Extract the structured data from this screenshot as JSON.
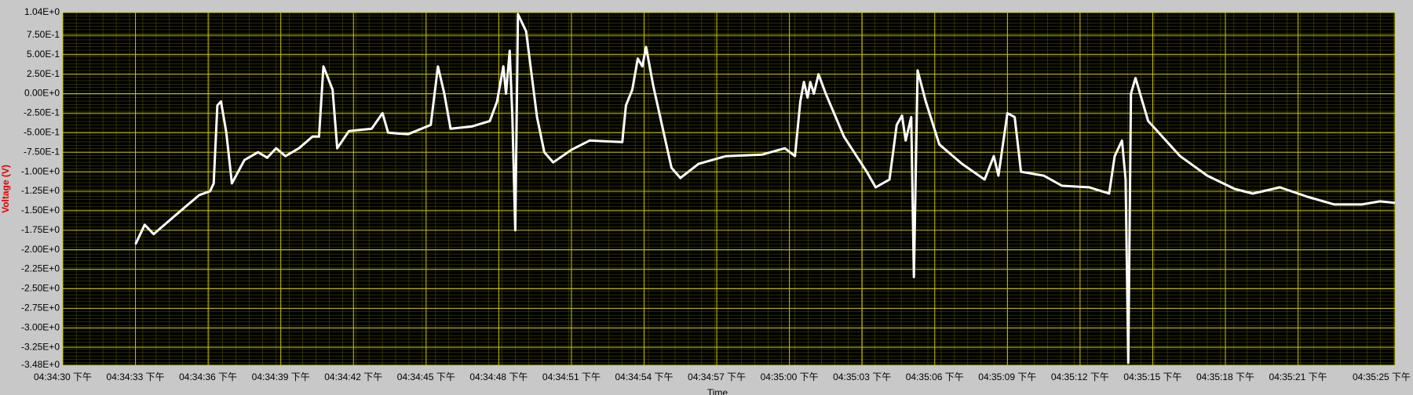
{
  "chart_data": {
    "type": "line",
    "xlabel": "Time",
    "ylabel": "Voltage (V)",
    "x": [
      3.0,
      3.38,
      3.75,
      4.31,
      5.06,
      5.63,
      6.08,
      6.23,
      6.38,
      6.53,
      6.75,
      6.98,
      7.5,
      8.06,
      8.44,
      8.81,
      9.19,
      9.75,
      10.31,
      10.58,
      10.76,
      10.95,
      11.14,
      11.33,
      11.81,
      12.75,
      13.2,
      13.43,
      14.25,
      15.19,
      15.49,
      15.75,
      16.01,
      16.88,
      17.63,
      17.93,
      18.19,
      18.3,
      18.45,
      18.56,
      18.68,
      18.79,
      19.13,
      19.58,
      19.88,
      20.25,
      21.0,
      21.75,
      23.1,
      23.25,
      23.51,
      23.74,
      23.93,
      24.08,
      24.38,
      25.13,
      25.5,
      26.25,
      27.38,
      28.88,
      29.81,
      30.23,
      30.45,
      30.6,
      30.75,
      30.86,
      31.01,
      31.2,
      31.5,
      32.25,
      33.19,
      33.56,
      34.13,
      34.43,
      34.65,
      34.8,
      35.03,
      35.14,
      35.29,
      35.63,
      36.19,
      37.13,
      38.06,
      38.44,
      38.63,
      39.0,
      39.3,
      39.56,
      40.5,
      41.25,
      42.38,
      43.2,
      43.43,
      43.73,
      43.88,
      43.99,
      44.1,
      44.29,
      44.81,
      46.13,
      47.25,
      48.38,
      49.13,
      50.25,
      51.38,
      52.5,
      53.63,
      54.38,
      55.0
    ],
    "series": [
      {
        "color": "#ffffff",
        "values": [
          -1.93,
          -1.68,
          -1.8,
          -1.65,
          -1.45,
          -1.3,
          -1.25,
          -1.15,
          -0.15,
          -0.1,
          -0.5,
          -1.15,
          -0.85,
          -0.75,
          -0.82,
          -0.7,
          -0.8,
          -0.7,
          -0.55,
          -0.55,
          0.35,
          0.2,
          0.05,
          -0.7,
          -0.48,
          -0.45,
          -0.25,
          -0.5,
          -0.52,
          -0.4,
          0.35,
          0.0,
          -0.45,
          -0.42,
          -0.35,
          -0.1,
          0.35,
          0.0,
          0.55,
          -0.3,
          -1.75,
          1.02,
          0.8,
          -0.3,
          -0.75,
          -0.88,
          -0.72,
          -0.6,
          -0.62,
          -0.15,
          0.05,
          0.45,
          0.35,
          0.6,
          0.1,
          -0.95,
          -1.08,
          -0.9,
          -0.8,
          -0.78,
          -0.7,
          -0.8,
          -0.1,
          0.15,
          -0.05,
          0.15,
          0.0,
          0.25,
          0.0,
          -0.55,
          -1.0,
          -1.2,
          -1.1,
          -0.4,
          -0.28,
          -0.6,
          -0.3,
          -2.35,
          0.3,
          -0.1,
          -0.65,
          -0.9,
          -1.1,
          -0.8,
          -1.05,
          -0.25,
          -0.3,
          -1.0,
          -1.05,
          -1.18,
          -1.2,
          -1.28,
          -0.8,
          -0.6,
          -1.1,
          -3.45,
          0.0,
          0.2,
          -0.35,
          -0.8,
          -1.05,
          -1.22,
          -1.28,
          -1.2,
          -1.32,
          -1.42,
          -1.42,
          -1.38,
          -1.4
        ]
      }
    ],
    "xlim": [
      0,
      55
    ],
    "xticks": [
      {
        "value": 0,
        "label": "04:34:30 下午"
      },
      {
        "value": 3,
        "label": "04:34:33 下午"
      },
      {
        "value": 6,
        "label": "04:34:36 下午"
      },
      {
        "value": 9,
        "label": "04:34:39 下午"
      },
      {
        "value": 12,
        "label": "04:34:42 下午"
      },
      {
        "value": 15,
        "label": "04:34:45 下午"
      },
      {
        "value": 18,
        "label": "04:34:48 下午"
      },
      {
        "value": 21,
        "label": "04:34:51 下午"
      },
      {
        "value": 24,
        "label": "04:34:54 下午"
      },
      {
        "value": 27,
        "label": "04:34:57 下午"
      },
      {
        "value": 30,
        "label": "04:35:00 下午"
      },
      {
        "value": 33,
        "label": "04:35:03 下午"
      },
      {
        "value": 36,
        "label": "04:35:06 下午"
      },
      {
        "value": 39,
        "label": "04:35:09 下午"
      },
      {
        "value": 42,
        "label": "04:35:12 下午"
      },
      {
        "value": 45,
        "label": "04:35:15 下午"
      },
      {
        "value": 48,
        "label": "04:35:18 下午"
      },
      {
        "value": 51,
        "label": "04:35:21 下午"
      },
      {
        "value": 55,
        "label": "04:35:25 下午"
      }
    ],
    "ylim": [
      -3.48,
      1.04
    ],
    "yticks": [
      {
        "value": 1.04,
        "label": "1.04E+0"
      },
      {
        "value": 0.75,
        "label": "7.50E-1"
      },
      {
        "value": 0.5,
        "label": "5.00E-1"
      },
      {
        "value": 0.25,
        "label": "2.50E-1"
      },
      {
        "value": 0,
        "label": "0.00E+0"
      },
      {
        "value": -0.25,
        "label": "-2.50E-1"
      },
      {
        "value": -0.5,
        "label": "-5.00E-1"
      },
      {
        "value": -0.75,
        "label": "-7.50E-1"
      },
      {
        "value": -1,
        "label": "-1.00E+0"
      },
      {
        "value": -1.25,
        "label": "-1.25E+0"
      },
      {
        "value": -1.5,
        "label": "-1.50E+0"
      },
      {
        "value": -1.75,
        "label": "-1.75E+0"
      },
      {
        "value": -2,
        "label": "-2.00E+0"
      },
      {
        "value": -2.25,
        "label": "-2.25E+0"
      },
      {
        "value": -2.5,
        "label": "-2.50E+0"
      },
      {
        "value": -2.75,
        "label": "-2.75E+0"
      },
      {
        "value": -3,
        "label": "-3.00E+0"
      },
      {
        "value": -3.25,
        "label": "-3.25E+0"
      },
      {
        "value": -3.48,
        "label": "-3.48E+0"
      }
    ],
    "grid": true,
    "grid_color": "#c8c800",
    "background": "#000000"
  }
}
